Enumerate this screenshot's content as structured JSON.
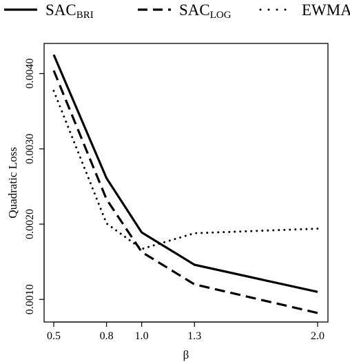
{
  "chart_data": {
    "type": "line",
    "xlabel": "β",
    "ylabel": "Quadratic Loss",
    "xlim": [
      0.5,
      2.0
    ],
    "ylim": [
      0.0007,
      0.0044
    ],
    "x_ticks": [
      {
        "value": 0.5,
        "label": "0.5"
      },
      {
        "value": 0.8,
        "label": "0.8"
      },
      {
        "value": 1.0,
        "label": "1.0"
      },
      {
        "value": 1.3,
        "label": "1.3"
      },
      {
        "value": 2.0,
        "label": "2.0"
      }
    ],
    "y_ticks": [
      {
        "value": 0.001,
        "label": "0.0010"
      },
      {
        "value": 0.002,
        "label": "0.0020"
      },
      {
        "value": 0.003,
        "label": "0.0030"
      },
      {
        "value": 0.004,
        "label": "0.0040"
      }
    ],
    "grid": false,
    "legend_position": "top",
    "series": [
      {
        "name": "SAC",
        "subscript": "BRI",
        "style": "solid",
        "x": [
          0.5,
          0.8,
          1.0,
          1.3,
          2.0
        ],
        "y": [
          0.00425,
          0.00261,
          0.00189,
          0.00146,
          0.0011
        ]
      },
      {
        "name": "SAC",
        "subscript": "LOG",
        "style": "dashed",
        "x": [
          0.5,
          0.8,
          1.0,
          1.3,
          2.0
        ],
        "y": [
          0.00404,
          0.00233,
          0.00163,
          0.0012,
          0.00082
        ]
      },
      {
        "name": "EWMA",
        "subscript": "",
        "style": "dotted",
        "x": [
          0.5,
          0.8,
          1.0,
          1.3,
          2.0
        ],
        "y": [
          0.00377,
          0.00201,
          0.00167,
          0.00188,
          0.00194
        ]
      }
    ],
    "colors": {
      "line": "#000000",
      "background": "#ffffff"
    }
  }
}
